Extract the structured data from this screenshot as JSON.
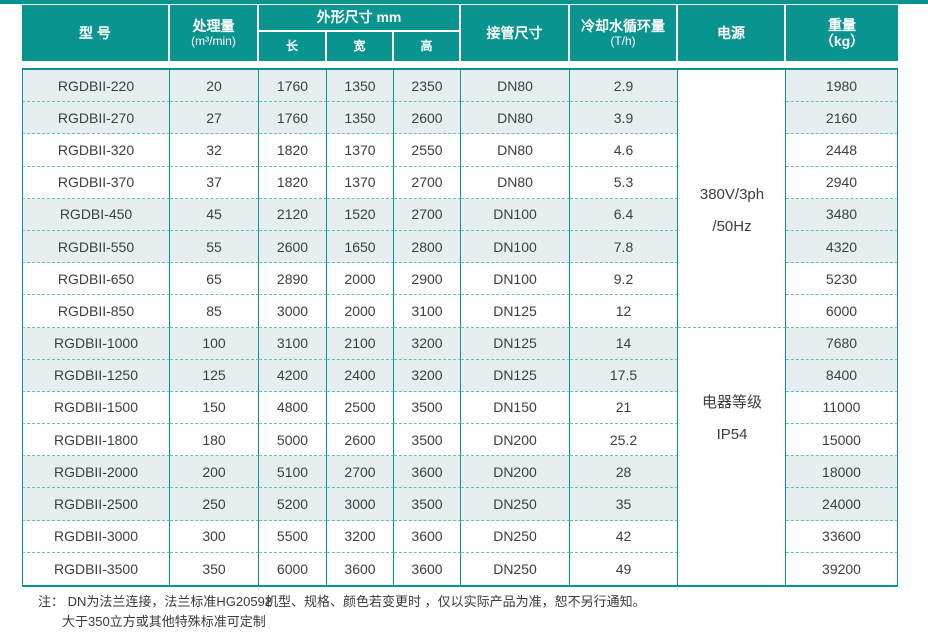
{
  "colors": {
    "teal": "#0A9490",
    "light_row_bg": "#E7EEEF",
    "dashed_line": "#66BDC3",
    "header_text": "#FFFFFF",
    "body_text": "#3E3E3E"
  },
  "header": {
    "model": "型  号",
    "capacity_line1": "处理量",
    "capacity_line2": "(m³/min)",
    "dimensions": "外形尺寸 mm",
    "length": "长",
    "width": "宽",
    "height": "高",
    "pipe": "接管尺寸",
    "cooling_line1": "冷却水循环量",
    "cooling_line2": "(T/h)",
    "power": "电源",
    "weight_line1": "重量",
    "weight_line2": "（kg）"
  },
  "power_cells": {
    "top": {
      "line1": "380V/3ph",
      "line2": "/50Hz"
    },
    "bottom": {
      "line1": "电器等级",
      "line2": "IP54"
    }
  },
  "table": {
    "rows": [
      {
        "model": "RGDBII-220",
        "capacity": "20",
        "length": "1760",
        "width": "1350",
        "height": "2350",
        "pipe": "DN80",
        "cooling": "2.9",
        "weight": "1980"
      },
      {
        "model": "RGDBII-270",
        "capacity": "27",
        "length": "1760",
        "width": "1350",
        "height": "2600",
        "pipe": "DN80",
        "cooling": "3.9",
        "weight": "2160"
      },
      {
        "model": "RGDBII-320",
        "capacity": "32",
        "length": "1820",
        "width": "1370",
        "height": "2550",
        "pipe": "DN80",
        "cooling": "4.6",
        "weight": "2448"
      },
      {
        "model": "RGDBII-370",
        "capacity": "37",
        "length": "1820",
        "width": "1370",
        "height": "2700",
        "pipe": "DN80",
        "cooling": "5.3",
        "weight": "2940"
      },
      {
        "model": "RGDBI-450",
        "capacity": "45",
        "length": "2120",
        "width": "1520",
        "height": "2700",
        "pipe": "DN100",
        "cooling": "6.4",
        "weight": "3480"
      },
      {
        "model": "RGDBII-550",
        "capacity": "55",
        "length": "2600",
        "width": "1650",
        "height": "2800",
        "pipe": "DN100",
        "cooling": "7.8",
        "weight": "4320"
      },
      {
        "model": "RGDBII-650",
        "capacity": "65",
        "length": "2890",
        "width": "2000",
        "height": "2900",
        "pipe": "DN100",
        "cooling": "9.2",
        "weight": "5230"
      },
      {
        "model": "RGDBII-850",
        "capacity": "85",
        "length": "3000",
        "width": "2000",
        "height": "3100",
        "pipe": "DN125",
        "cooling": "12",
        "weight": "6000"
      },
      {
        "model": "RGDBII-1000",
        "capacity": "100",
        "length": "3100",
        "width": "2100",
        "height": "3200",
        "pipe": "DN125",
        "cooling": "14",
        "weight": "7680"
      },
      {
        "model": "RGDBII-1250",
        "capacity": "125",
        "length": "4200",
        "width": "2400",
        "height": "3200",
        "pipe": "DN125",
        "cooling": "17.5",
        "weight": "8400"
      },
      {
        "model": "RGDBII-1500",
        "capacity": "150",
        "length": "4800",
        "width": "2500",
        "height": "3500",
        "pipe": "DN150",
        "cooling": "21",
        "weight": "11000"
      },
      {
        "model": "RGDBII-1800",
        "capacity": "180",
        "length": "5000",
        "width": "2600",
        "height": "3500",
        "pipe": "DN200",
        "cooling": "25.2",
        "weight": "15000"
      },
      {
        "model": "RGDBII-2000",
        "capacity": "200",
        "length": "5100",
        "width": "2700",
        "height": "3600",
        "pipe": "DN200",
        "cooling": "28",
        "weight": "18000"
      },
      {
        "model": "RGDBII-2500",
        "capacity": "250",
        "length": "5200",
        "width": "3000",
        "height": "3500",
        "pipe": "DN250",
        "cooling": "35",
        "weight": "24000"
      },
      {
        "model": "RGDBII-3000",
        "capacity": "300",
        "length": "5500",
        "width": "3200",
        "height": "3600",
        "pipe": "DN250",
        "cooling": "42",
        "weight": "33600"
      },
      {
        "model": "RGDBII-3500",
        "capacity": "350",
        "length": "6000",
        "width": "3600",
        "height": "3600",
        "pipe": "DN250",
        "cooling": "49",
        "weight": "39200"
      }
    ]
  },
  "notes": {
    "label_line1": "注： DN为法兰连接，法兰标准HG20592",
    "line2": "大于350立方或其他特殊标准可定制",
    "right_note": "机型、规格、颜色若变更时 ，仅以实际产品为准，恕不另行通知。"
  }
}
